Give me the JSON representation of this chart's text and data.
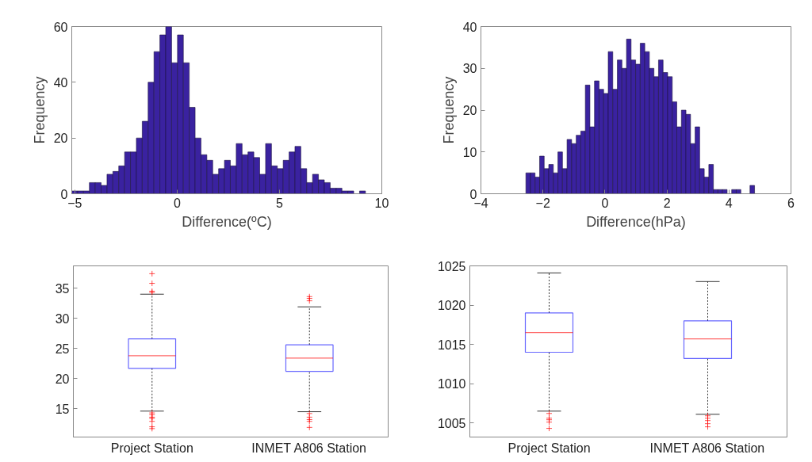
{
  "chart_data": [
    {
      "type": "histogram",
      "xlabel": "Difference(ºC)",
      "ylabel": "Frequency",
      "color": "#3a22a0",
      "xlim": [
        -5.15,
        10
      ],
      "xticks": [
        -5,
        0,
        5,
        10
      ],
      "ylim": [
        0,
        60
      ],
      "yticks": [
        0,
        20,
        40,
        60
      ],
      "grid": false,
      "bins": [
        -5.15,
        -4.863,
        -4.576,
        -4.289,
        -4.002,
        -3.715,
        -3.428,
        -3.141,
        -2.854,
        -2.567,
        -2.28,
        -1.993,
        -1.706,
        -1.419,
        -1.132,
        -0.845,
        -0.558,
        -0.271,
        0.016,
        0.303,
        0.59,
        0.877,
        1.164,
        1.451,
        1.738,
        2.025,
        2.312,
        2.599,
        2.886,
        3.173,
        3.46,
        3.747,
        4.034,
        4.321,
        4.608,
        4.895,
        5.182,
        5.469,
        5.756,
        6.043,
        6.33,
        6.617,
        6.904,
        7.191,
        7.478,
        7.765,
        8.052,
        8.339,
        8.626,
        8.913,
        9.2
      ],
      "values": [
        1,
        1,
        1,
        4,
        4,
        3,
        7,
        8,
        10,
        15,
        15,
        20,
        26,
        40,
        51,
        57,
        60,
        47,
        57,
        47,
        31,
        20,
        14,
        12,
        7,
        9,
        12,
        10,
        18,
        14,
        15,
        13,
        7,
        18,
        10,
        9,
        12,
        15,
        17,
        9,
        4,
        7,
        5,
        4,
        2,
        2,
        1,
        1,
        0,
        1
      ]
    },
    {
      "type": "histogram",
      "xlabel": "Difference(hPa)",
      "ylabel": "Frequency",
      "color": "#3a22a0",
      "xlim": [
        -4,
        6
      ],
      "xticks": [
        -4,
        -2,
        0,
        2,
        4,
        6
      ],
      "ylim": [
        0,
        40
      ],
      "yticks": [
        0,
        10,
        20,
        30,
        40
      ],
      "grid": false,
      "bins": [
        -2.55,
        -2.4025,
        -2.255,
        -2.1075,
        -1.96,
        -1.8125,
        -1.665,
        -1.5175,
        -1.37,
        -1.2225,
        -1.075,
        -0.9275,
        -0.78,
        -0.6325,
        -0.485,
        -0.3375,
        -0.19,
        -0.0425,
        0.105,
        0.2525,
        0.4,
        0.5475,
        0.695,
        0.8425,
        0.99,
        1.1375,
        1.285,
        1.4325,
        1.58,
        1.7275,
        1.875,
        2.0225,
        2.17,
        2.3175,
        2.465,
        2.6125,
        2.76,
        2.9075,
        3.055,
        3.2025,
        3.35,
        3.4975,
        3.645,
        3.7925,
        3.94,
        4.0875,
        4.235,
        4.3825,
        4.53,
        4.6775,
        4.825
      ],
      "values": [
        5,
        5,
        4,
        9,
        6,
        7,
        5,
        10,
        6,
        13,
        12,
        14,
        15,
        26,
        16,
        27,
        25,
        24,
        34,
        25,
        32,
        30,
        37,
        32,
        31,
        36,
        34,
        30,
        28,
        32,
        29,
        28,
        22,
        16,
        20,
        19,
        12,
        16,
        6,
        4,
        7,
        1,
        1,
        1,
        0,
        1,
        1,
        0,
        0,
        2
      ]
    },
    {
      "type": "box",
      "categories": [
        "Project Station",
        "INMET A806 Station"
      ],
      "ylim": [
        10.3,
        38.7
      ],
      "yticks": [
        15,
        20,
        25,
        30,
        35
      ],
      "grid": false,
      "series": [
        {
          "color": "#0000ff",
          "boxes": [
            {
              "low": 14.6,
              "q1": 21.7,
              "median": 23.8,
              "q3": 26.6,
              "high": 34.0,
              "outliers": [
                37.4,
                35.8,
                34.5,
                34.3,
                14.3,
                14.0,
                13.6,
                13.4,
                12.9,
                12.0,
                11.7
              ]
            },
            {
              "low": 14.5,
              "q1": 21.2,
              "median": 23.4,
              "q3": 25.6,
              "high": 31.9,
              "outliers": [
                33.6,
                33.3,
                32.9,
                14.2,
                13.6,
                13.2,
                12.9,
                11.9
              ]
            }
          ]
        }
      ]
    },
    {
      "type": "box",
      "categories": [
        "Project Station",
        "INMET A806 Station"
      ],
      "ylim": [
        1003.2,
        1025
      ],
      "yticks": [
        1005,
        1010,
        1015,
        1020,
        1025
      ],
      "grid": false,
      "series": [
        {
          "color": "#0000ff",
          "boxes": [
            {
              "low": 1006.5,
              "q1": 1014.0,
              "median": 1016.5,
              "q3": 1019.0,
              "high": 1024.1,
              "outliers": [
                1006.2,
                1005.6,
                1005.4,
                1005.1,
                1004.3
              ]
            },
            {
              "low": 1006.1,
              "q1": 1013.2,
              "median": 1015.7,
              "q3": 1018.0,
              "high": 1023.0,
              "outliers": [
                1005.9,
                1005.6,
                1005.3,
                1004.9,
                1004.5
              ]
            }
          ]
        }
      ]
    }
  ]
}
